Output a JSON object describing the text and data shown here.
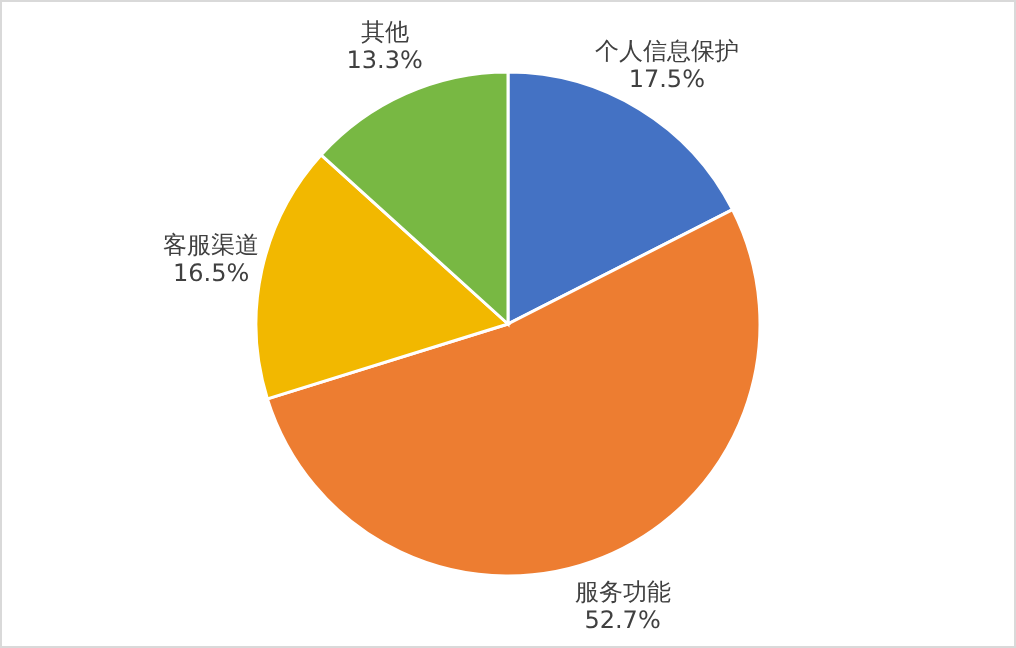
{
  "chart_data": {
    "type": "pie",
    "categories": [
      "个人信息保护",
      "服务功能",
      "客服渠道",
      "其他"
    ],
    "values": [
      17.5,
      52.7,
      16.5,
      13.3
    ],
    "value_labels": [
      "17.5%",
      "52.7%",
      "16.5%",
      "13.3%"
    ],
    "colors": [
      "#4472c4",
      "#ed7d31",
      "#f2b800",
      "#78b843"
    ]
  }
}
